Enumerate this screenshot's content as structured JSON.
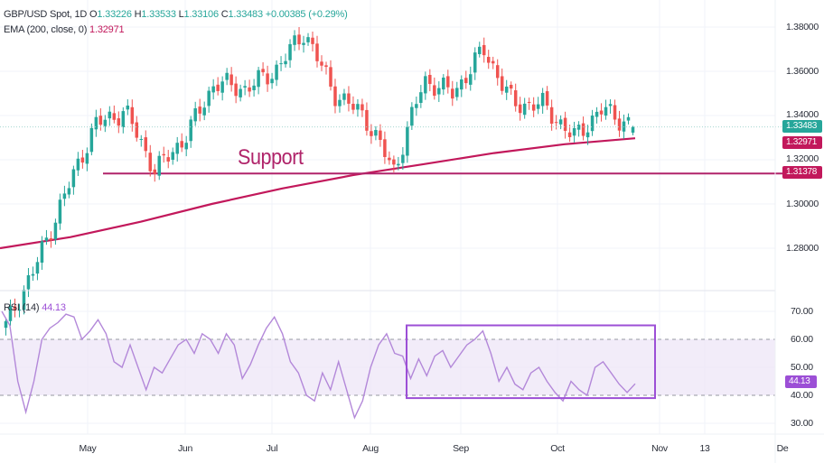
{
  "header": {
    "symbol_line": {
      "symbol": "GBP/USD Spot, 1D",
      "open_label": "O",
      "open": "1.33226",
      "high_label": "H",
      "high": "1.33533",
      "low_label": "L",
      "low": "1.33106",
      "close_label": "C",
      "close": "1.33483",
      "change": "+0.00385 (+0.29%)"
    },
    "ema_line": {
      "label": "EMA (200, close, 0)",
      "value": "1.32971"
    }
  },
  "annotations": {
    "support_text": "Support"
  },
  "price_axis": {
    "ticks": [
      "1.38000",
      "1.36000",
      "1.34000",
      "1.32000",
      "1.30000",
      "1.28000"
    ],
    "tags": {
      "last_price": "1.33483",
      "ema": "1.32971",
      "support": "1.31378"
    }
  },
  "rsi_pane": {
    "label": "RSI (14)",
    "value": "44.13",
    "ticks": [
      "70.00",
      "60.00",
      "50.00",
      "40.00",
      "30.00"
    ],
    "tag": "44.13"
  },
  "time_axis": {
    "labels": [
      "May",
      "Jun",
      "Jul",
      "Aug",
      "Sep",
      "Oct",
      "Nov",
      "13",
      "De"
    ]
  },
  "colors": {
    "up": "#26a69a",
    "down": "#ef5350",
    "ema": "#c2185b",
    "support": "#b0246a",
    "rsi": "#b388d9",
    "rsi_band": "#ece4f7",
    "box": "#9c4fd6",
    "grid": "#f0f3fa"
  },
  "chart_data": [
    {
      "type": "candlestick",
      "title": "GBP/USD Spot, 1D",
      "xlabel": "",
      "ylabel": "",
      "ylim": [
        1.27,
        1.385
      ],
      "x_ticks": [
        "May",
        "Jun",
        "Jul",
        "Aug",
        "Sep",
        "Oct",
        "Nov",
        "13",
        "De"
      ],
      "y_ticks": [
        1.28,
        1.3,
        1.32,
        1.34,
        1.36,
        1.38
      ],
      "grid": true,
      "last": {
        "open": 1.33226,
        "high": 1.33533,
        "low": 1.33106,
        "close": 1.33483,
        "change": 0.00385,
        "change_pct": 0.29
      },
      "closes_approx": [
        {
          "period": "mid-Apr",
          "value": 1.245
        },
        {
          "period": "Apr low",
          "value": 1.272
        },
        {
          "period": "late Apr",
          "value": 1.305
        },
        {
          "period": "early May",
          "value": 1.336
        },
        {
          "period": "May",
          "value": 1.342
        },
        {
          "period": "mid-May (support)",
          "value": 1.315
        },
        {
          "period": "late May",
          "value": 1.33
        },
        {
          "period": "early Jun",
          "value": 1.355
        },
        {
          "period": "Jun",
          "value": 1.352
        },
        {
          "period": "late Jun",
          "value": 1.36
        },
        {
          "period": "early Jul (high)",
          "value": 1.378
        },
        {
          "period": "mid-Jul",
          "value": 1.35
        },
        {
          "period": "late Jul",
          "value": 1.34
        },
        {
          "period": "early Aug (low)",
          "value": 1.315
        },
        {
          "period": "mid-Aug",
          "value": 1.356
        },
        {
          "period": "late Aug",
          "value": 1.35
        },
        {
          "period": "mid-Sep (high)",
          "value": 1.37
        },
        {
          "period": "late Sep",
          "value": 1.345
        },
        {
          "period": "early Oct",
          "value": 1.345
        },
        {
          "period": "mid-Oct",
          "value": 1.33
        },
        {
          "period": "late Oct",
          "value": 1.343
        },
        {
          "period": "last",
          "value": 1.33483
        }
      ],
      "series": [
        {
          "name": "EMA (200, close, 0)",
          "last": 1.32971,
          "values_approx": [
            1.28,
            1.285,
            1.292,
            1.3,
            1.307,
            1.313,
            1.318,
            1.323,
            1.327,
            1.3297
          ]
        },
        {
          "name": "Support",
          "type": "hline",
          "value": 1.31378
        }
      ]
    },
    {
      "type": "line",
      "title": "RSI (14)",
      "ylim": [
        25,
        75
      ],
      "y_ticks": [
        30,
        40,
        50,
        60,
        70
      ],
      "bands": {
        "upper": 60,
        "lower": 40
      },
      "last": 44.13,
      "values_approx": [
        70,
        65,
        45,
        34,
        45,
        60,
        64,
        66,
        69,
        68,
        60,
        63,
        67,
        62,
        52,
        50,
        58,
        50,
        42,
        50,
        48,
        53,
        58,
        60,
        55,
        62,
        60,
        55,
        62,
        58,
        46,
        51,
        58,
        64,
        68,
        62,
        52,
        48,
        40,
        38,
        48,
        42,
        52,
        42,
        32,
        38,
        50,
        58,
        62,
        55,
        54,
        46,
        53,
        47,
        54,
        56,
        50,
        54,
        58,
        60,
        63,
        55,
        45,
        50,
        44,
        42,
        48,
        50,
        45,
        41,
        38,
        45,
        42,
        40,
        50,
        52,
        48,
        44,
        41,
        44.13
      ],
      "annotation_box": {
        "x_range": [
          "mid-Aug",
          "late Oct"
        ],
        "y_range": [
          39,
          65
        ]
      }
    }
  ]
}
